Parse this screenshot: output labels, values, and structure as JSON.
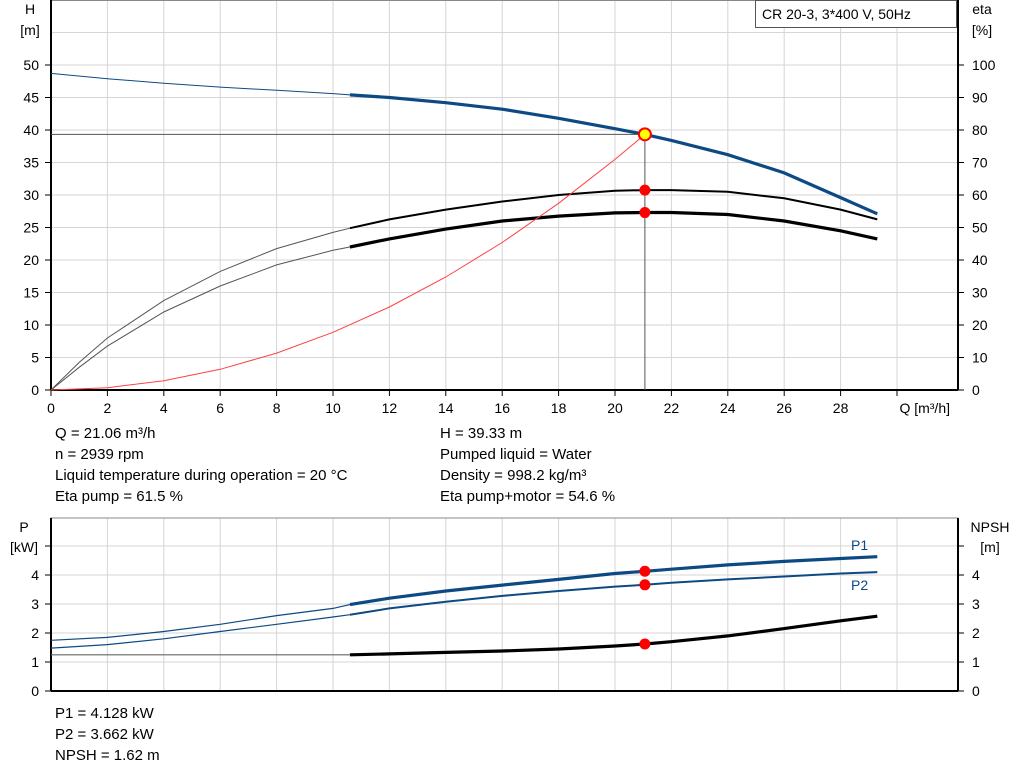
{
  "chart_data": [
    {
      "type": "line",
      "title": "CR 20-3, 3*400 V, 50Hz",
      "xlabel": "Q [m³/h]",
      "ylabel": "H\n[m]",
      "y2label": "eta\n[%]",
      "xlim": [
        0,
        30
      ],
      "ylim": [
        0,
        55
      ],
      "y2lim": [
        0,
        110
      ],
      "xticks": [
        0,
        2,
        4,
        6,
        8,
        10,
        12,
        14,
        16,
        18,
        20,
        22,
        24,
        26,
        28
      ],
      "yticks": [
        0,
        5,
        10,
        15,
        20,
        25,
        30,
        35,
        40,
        45,
        50
      ],
      "y2ticks": [
        0,
        10,
        20,
        30,
        40,
        50,
        60,
        70,
        80,
        90,
        100
      ],
      "grid": true,
      "operating_range_start_q": 10.6,
      "operating_point": {
        "q": 21.06,
        "h": 39.33,
        "eta_pump": 61.5,
        "eta_pump_motor": 54.6
      },
      "series": [
        {
          "id": "head",
          "axis": "left",
          "color": "#0d4a84",
          "x": [
            0,
            2,
            4,
            6,
            8,
            10,
            10.6,
            12,
            14,
            16,
            18,
            20,
            21.06,
            22,
            24,
            26,
            28,
            29.3
          ],
          "y": [
            48.7,
            47.9,
            47.2,
            46.6,
            46.1,
            45.6,
            45.4,
            45.0,
            44.2,
            43.2,
            41.8,
            40.2,
            39.33,
            38.4,
            36.2,
            33.4,
            29.6,
            27.1
          ]
        },
        {
          "id": "eta-pump",
          "axis": "right",
          "color": "#000000",
          "x": [
            0,
            1,
            2,
            4,
            6,
            8,
            10,
            10.6,
            12,
            14,
            16,
            18,
            20,
            21.06,
            22,
            24,
            26,
            28,
            29.3
          ],
          "y": [
            0,
            8.5,
            16,
            27.5,
            36.5,
            43.5,
            48.5,
            49.8,
            52.5,
            55.5,
            58,
            60,
            61.3,
            61.5,
            61.5,
            61,
            59,
            55.5,
            52.5
          ]
        },
        {
          "id": "eta-pump-motor",
          "axis": "right",
          "color": "#000000",
          "x": [
            0,
            1,
            2,
            4,
            6,
            8,
            10,
            10.6,
            12,
            14,
            16,
            18,
            20,
            21.06,
            22,
            24,
            26,
            28,
            29.3
          ],
          "y": [
            0,
            7,
            13.5,
            24,
            32,
            38.5,
            43,
            44,
            46.5,
            49.5,
            52,
            53.5,
            54.5,
            54.6,
            54.6,
            54,
            52,
            49,
            46.5
          ]
        },
        {
          "id": "system-curve",
          "axis": "left",
          "color": "#ff4040",
          "x": [
            0,
            2,
            4,
            6,
            8,
            10,
            12,
            14,
            16,
            18,
            20,
            21.06
          ],
          "y": [
            0,
            0.35,
            1.42,
            3.19,
            5.67,
            8.87,
            12.77,
            17.38,
            22.7,
            28.73,
            35.47,
            39.33
          ]
        }
      ]
    },
    {
      "type": "line",
      "ylabel": "P\n[kW]",
      "y2label": "NPSH\n[m]",
      "xlim": [
        0,
        30
      ],
      "ylim": [
        0,
        5
      ],
      "y2lim": [
        0,
        5
      ],
      "yticks": [
        0,
        1,
        2,
        3,
        4
      ],
      "y2ticks": [
        0,
        1,
        2,
        3,
        4
      ],
      "grid": true,
      "operating_range_start_q": 10.6,
      "operating_point": {
        "q": 21.06,
        "p1": 4.128,
        "p2": 3.662,
        "npsh": 1.62
      },
      "series": [
        {
          "id": "p1",
          "name": "P1",
          "axis": "left",
          "color": "#0d4a84",
          "x": [
            0,
            2,
            4,
            6,
            8,
            10,
            10.6,
            12,
            14,
            16,
            18,
            20,
            21.06,
            22,
            24,
            26,
            28,
            29.3
          ],
          "y": [
            1.75,
            1.85,
            2.05,
            2.3,
            2.6,
            2.85,
            2.98,
            3.2,
            3.45,
            3.65,
            3.85,
            4.05,
            4.128,
            4.2,
            4.35,
            4.47,
            4.57,
            4.63
          ]
        },
        {
          "id": "p2",
          "name": "P2",
          "axis": "left",
          "color": "#0d4a84",
          "x": [
            0,
            2,
            4,
            6,
            8,
            10,
            10.6,
            12,
            14,
            16,
            18,
            20,
            21.06,
            22,
            24,
            26,
            28,
            29.3
          ],
          "y": [
            1.48,
            1.6,
            1.8,
            2.05,
            2.3,
            2.55,
            2.63,
            2.85,
            3.08,
            3.28,
            3.45,
            3.6,
            3.662,
            3.73,
            3.85,
            3.95,
            4.05,
            4.1
          ]
        },
        {
          "id": "npsh",
          "axis": "right",
          "color": "#000000",
          "x": [
            0,
            10.6,
            12,
            14,
            16,
            18,
            20,
            21.06,
            22,
            24,
            26,
            28,
            29.3
          ],
          "y": [
            1.25,
            1.25,
            1.28,
            1.33,
            1.38,
            1.45,
            1.55,
            1.62,
            1.7,
            1.9,
            2.15,
            2.42,
            2.58
          ]
        }
      ]
    }
  ],
  "info_top": {
    "left": [
      "Q = 21.06 m³/h",
      "n = 2939 rpm",
      "Liquid temperature during operation = 20 °C",
      "Eta pump = 61.5 %"
    ],
    "right": [
      "H = 39.33 m",
      "Pumped liquid = Water",
      "Density = 998.2 kg/m³",
      "Eta pump+motor = 54.6 %"
    ]
  },
  "info_bottom": [
    "P1 = 4.128 kW",
    "P2 = 3.662 kW",
    "NPSH = 1.62 m"
  ]
}
